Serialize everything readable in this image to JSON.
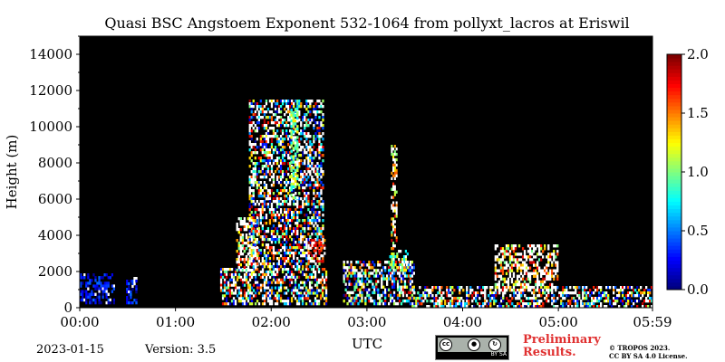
{
  "chart_data": {
    "type": "heatmap",
    "title": "Quasi BSC Angstoem Exponent 532-1064 from pollyxt_lacros at Eriswil",
    "ylabel": "Height (m)",
    "xlabel": "UTC",
    "ylim": [
      0,
      15000
    ],
    "yticks": [
      {
        "value": 0,
        "label": "0"
      },
      {
        "value": 2000,
        "label": "2000"
      },
      {
        "value": 4000,
        "label": "4000"
      },
      {
        "value": 6000,
        "label": "6000"
      },
      {
        "value": 8000,
        "label": "8000"
      },
      {
        "value": 10000,
        "label": "10000"
      },
      {
        "value": 12000,
        "label": "12000"
      },
      {
        "value": 14000,
        "label": "14000"
      }
    ],
    "xlim": [
      "00:00",
      "05:59"
    ],
    "xticks": [
      {
        "value": "00:00",
        "label": "00:00"
      },
      {
        "value": "01:00",
        "label": "01:00"
      },
      {
        "value": "02:00",
        "label": "02:00"
      },
      {
        "value": "03:00",
        "label": "03:00"
      },
      {
        "value": "04:00",
        "label": "04:00"
      },
      {
        "value": "05:00",
        "label": "05:00"
      },
      {
        "value": "05:59",
        "label": "05:59"
      }
    ],
    "colorbar": {
      "min": 0.0,
      "max": 2.0,
      "ticks": [
        {
          "value": 0.0,
          "label": "0.0"
        },
        {
          "value": 0.5,
          "label": "0.5"
        },
        {
          "value": 1.0,
          "label": "1.0"
        },
        {
          "value": 1.5,
          "label": "1.5"
        },
        {
          "value": 2.0,
          "label": "2.0"
        }
      ],
      "colormap": "jet",
      "background_color": "#000000",
      "saturated_color": "#ffffff"
    },
    "regions": [
      {
        "t0": "00:00",
        "t1": "00:22",
        "h0": 200,
        "h1": 1900,
        "level": "low"
      },
      {
        "t0": "00:29",
        "t1": "00:36",
        "h0": 200,
        "h1": 1700,
        "level": "low"
      },
      {
        "t0": "01:28",
        "t1": "02:35",
        "h0": 150,
        "h1": 2200,
        "level": "mixed"
      },
      {
        "t0": "01:38",
        "t1": "01:52",
        "h0": 2000,
        "h1": 5000,
        "level": "saturated"
      },
      {
        "t0": "01:46",
        "t1": "02:33",
        "h0": 2200,
        "h1": 11500,
        "level": "mixed"
      },
      {
        "t0": "02:12",
        "t1": "02:17",
        "h0": 6000,
        "h1": 11000,
        "level": "mid"
      },
      {
        "t0": "02:23",
        "t1": "02:34",
        "h0": 2500,
        "h1": 3800,
        "level": "high"
      },
      {
        "t0": "02:45",
        "t1": "03:30",
        "h0": 150,
        "h1": 2600,
        "level": "mixed"
      },
      {
        "t0": "03:14",
        "t1": "03:26",
        "h0": 2000,
        "h1": 3200,
        "level": "mid"
      },
      {
        "t0": "03:15",
        "t1": "03:19",
        "h0": 3200,
        "h1": 9000,
        "level": "saturated"
      },
      {
        "t0": "03:28",
        "t1": "05:59",
        "h0": 0,
        "h1": 1200,
        "level": "mixed"
      },
      {
        "t0": "04:20",
        "t1": "05:00",
        "h0": 900,
        "h1": 3500,
        "level": "saturated"
      }
    ]
  },
  "footer": {
    "date": "2023-01-15",
    "version": "Version: 3.5",
    "preliminary_line1": "Preliminary",
    "preliminary_line2": "Results.",
    "copyright_line1": "© TROPOS 2023.",
    "copyright_line2": "CC BY SA 4.0 License.",
    "cc_badge_text": "BY  SA",
    "cc_icon_label": "cc"
  }
}
